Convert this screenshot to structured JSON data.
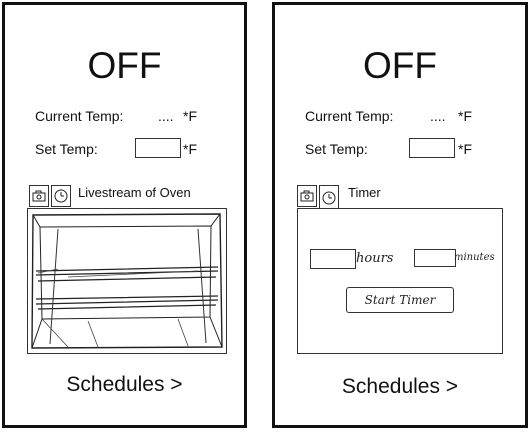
{
  "left": {
    "status": "OFF",
    "current_temp_label": "Current Temp:",
    "current_temp_value": "....",
    "current_temp_unit": "*F",
    "set_temp_label": "Set Temp:",
    "set_temp_unit": "*F",
    "tab_title": "Livestream of Oven",
    "schedules_label": "Schedules >"
  },
  "right": {
    "status": "OFF",
    "current_temp_label": "Current Temp:",
    "current_temp_value": "....",
    "current_temp_unit": "*F",
    "set_temp_label": "Set Temp:",
    "set_temp_unit": "*F",
    "tab_title": "Timer",
    "hours_label": "hours",
    "minutes_label": "minutes",
    "start_timer_label": "Start Timer",
    "schedules_label": "Schedules >"
  },
  "icons": {
    "camera_tab": "camera-icon",
    "timer_tab": "clock-icon"
  }
}
